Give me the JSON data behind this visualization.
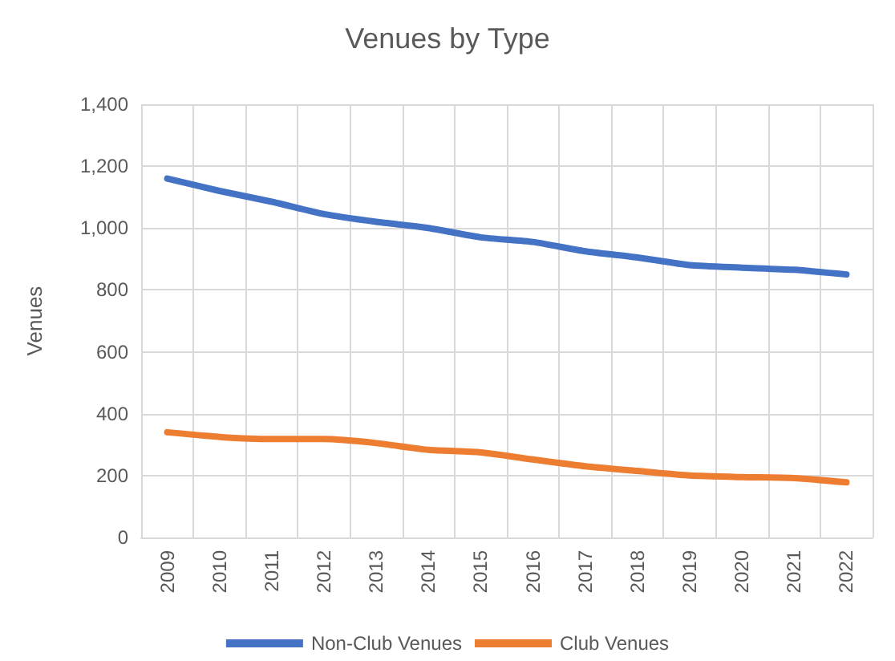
{
  "chart_data": {
    "type": "line",
    "title": "Venues by Type",
    "ylabel": "Venues",
    "categories": [
      "2009",
      "2010",
      "2011",
      "2012",
      "2013",
      "2014",
      "2015",
      "2016",
      "2017",
      "2018",
      "2019",
      "2020",
      "2021",
      "2022"
    ],
    "series": [
      {
        "name": "Non-Club Venues",
        "color": "#4472c4",
        "values": [
          1160,
          1120,
          1085,
          1045,
          1020,
          1000,
          970,
          955,
          925,
          905,
          880,
          872,
          865,
          850
        ]
      },
      {
        "name": "Club Venues",
        "color": "#ed7d31",
        "values": [
          340,
          325,
          318,
          318,
          305,
          283,
          275,
          252,
          230,
          215,
          200,
          195,
          192,
          178
        ]
      }
    ],
    "ylim": [
      0,
      1400
    ],
    "yticks": [
      0,
      200,
      400,
      600,
      800,
      {
        "value": 1000,
        "label": "1,000"
      },
      {
        "value": 1200,
        "label": "1,200"
      },
      {
        "value": 1400,
        "label": "1,400"
      }
    ],
    "grid": true,
    "legend": "bottom",
    "marker": "none",
    "line_style": "solid"
  }
}
